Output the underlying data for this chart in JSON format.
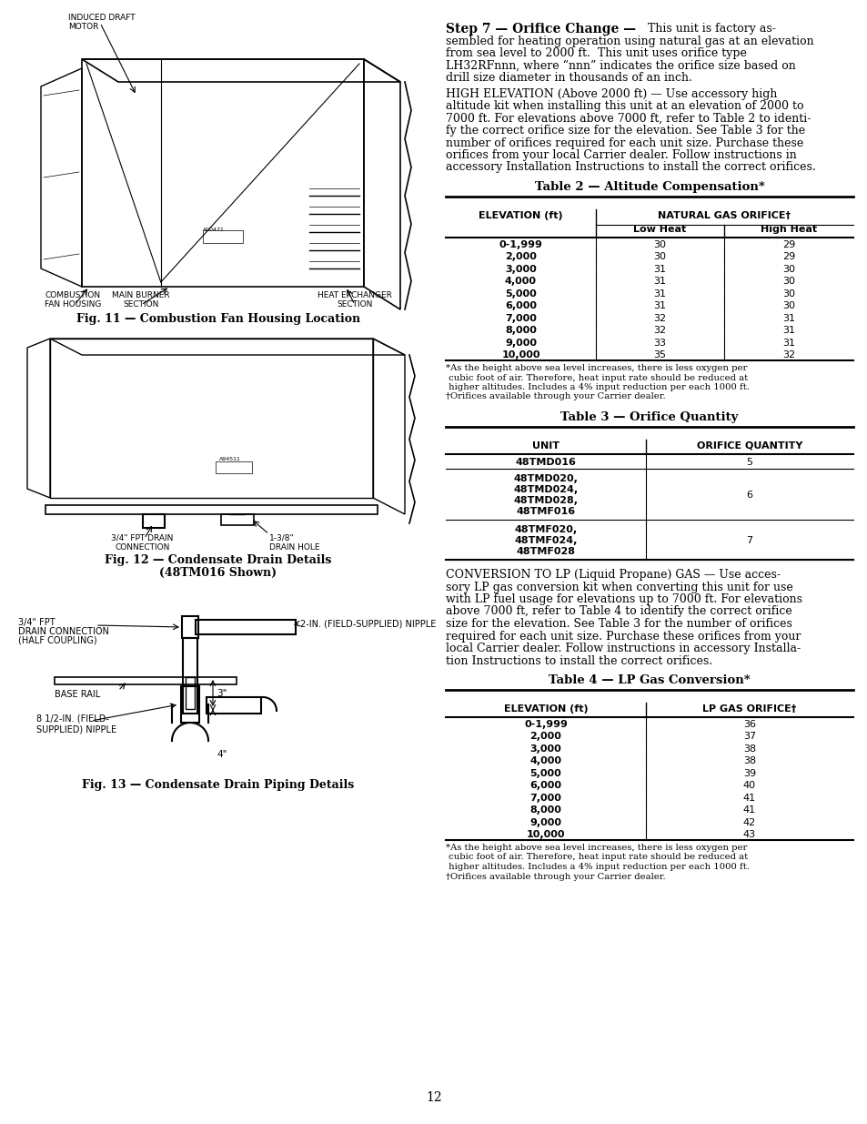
{
  "page_bg": "#ffffff",
  "page_num": "12",
  "step_title_bold": "Step 7 — Orifice Change —",
  "table2_title": "Table 2 — Altitude Compensation*",
  "table2_col1": "ELEVATION (ft)",
  "table2_col2": "NATURAL GAS ORIFICE†",
  "table2_col2a": "Low Heat",
  "table2_col2b": "High Heat",
  "table2_rows": [
    [
      "0-1,999",
      "30",
      "29"
    ],
    [
      "2,000",
      "30",
      "29"
    ],
    [
      "3,000",
      "31",
      "30"
    ],
    [
      "4,000",
      "31",
      "30"
    ],
    [
      "5,000",
      "31",
      "30"
    ],
    [
      "6,000",
      "31",
      "30"
    ],
    [
      "7,000",
      "32",
      "31"
    ],
    [
      "8,000",
      "32",
      "31"
    ],
    [
      "9,000",
      "33",
      "31"
    ],
    [
      "10,000",
      "35",
      "32"
    ]
  ],
  "table3_title": "Table 3 — Orifice Quantity",
  "table3_col1": "UNIT",
  "table3_col2": "ORIFICE QUANTITY",
  "table3_rows": [
    [
      "48TMD016",
      "5"
    ],
    [
      "48TMD020,\n48TMD024,\n48TMD028,\n48TMF016",
      "6"
    ],
    [
      "48TMF020,\n48TMF024,\n48TMF028",
      "7"
    ]
  ],
  "table4_title": "Table 4 — LP Gas Conversion*",
  "table4_col1": "ELEVATION (ft)",
  "table4_col2": "LP GAS ORIFICE†",
  "table4_rows": [
    [
      "0-1,999",
      "36"
    ],
    [
      "2,000",
      "37"
    ],
    [
      "3,000",
      "38"
    ],
    [
      "4,000",
      "38"
    ],
    [
      "5,000",
      "39"
    ],
    [
      "6,000",
      "40"
    ],
    [
      "7,000",
      "41"
    ],
    [
      "8,000",
      "41"
    ],
    [
      "9,000",
      "42"
    ],
    [
      "10,000",
      "43"
    ]
  ],
  "fig11_caption": "Fig. 11 — Combustion Fan Housing Location",
  "fig12_caption1": "Fig. 12 — Condensate Drain Details",
  "fig12_caption2": "(48TM016 Shown)",
  "fig13_caption": "Fig. 13 — Condensate Drain Piping Details"
}
